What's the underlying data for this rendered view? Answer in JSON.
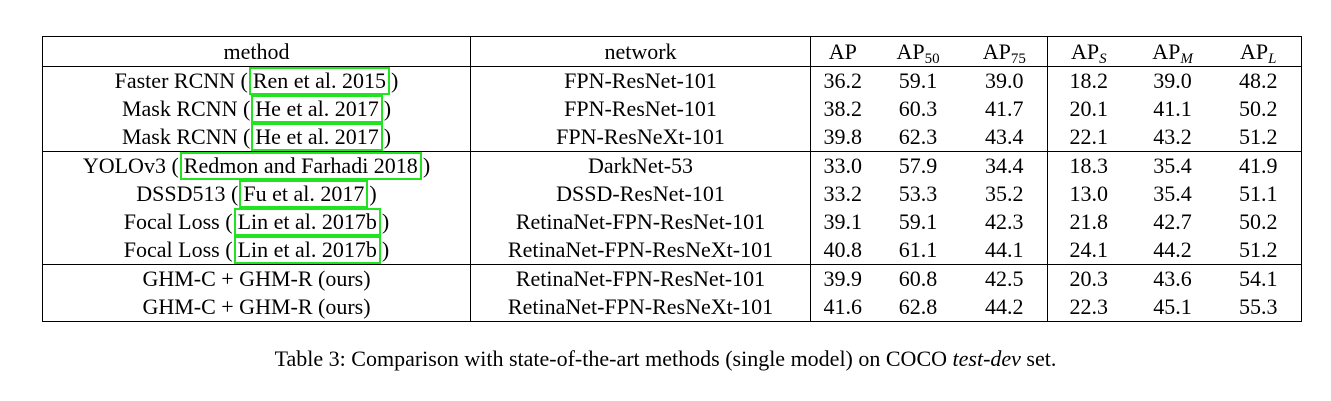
{
  "table": {
    "headers": {
      "method": "method",
      "network": "network",
      "ap": "AP",
      "ap50_base": "AP",
      "ap50_sub": "50",
      "ap75_base": "AP",
      "ap75_sub": "75",
      "aps_base": "AP",
      "aps_sub": "S",
      "apm_base": "AP",
      "apm_sub": "M",
      "apl_base": "AP",
      "apl_sub": "L"
    },
    "rows": [
      {
        "name": "Faster RCNN (",
        "cite": "Ren et al. 2015",
        "close": ")",
        "network": "FPN-ResNet-101",
        "ap": "36.2",
        "ap50": "59.1",
        "ap75": "39.0",
        "aps": "18.2",
        "apm": "39.0",
        "apl": "48.2"
      },
      {
        "name": "Mask RCNN (",
        "cite": "He et al. 2017",
        "close": ")",
        "network": "FPN-ResNet-101",
        "ap": "38.2",
        "ap50": "60.3",
        "ap75": "41.7",
        "aps": "20.1",
        "apm": "41.1",
        "apl": "50.2"
      },
      {
        "name": "Mask RCNN (",
        "cite": "He et al. 2017",
        "close": ")",
        "network": "FPN-ResNeXt-101",
        "ap": "39.8",
        "ap50": "62.3",
        "ap75": "43.4",
        "aps": "22.1",
        "apm": "43.2",
        "apl": "51.2"
      },
      {
        "name": "YOLOv3 (",
        "cite": "Redmon and Farhadi 2018",
        "close": ")",
        "network": "DarkNet-53",
        "ap": "33.0",
        "ap50": "57.9",
        "ap75": "34.4",
        "aps": "18.3",
        "apm": "35.4",
        "apl": "41.9"
      },
      {
        "name": "DSSD513 (",
        "cite": "Fu et al. 2017",
        "close": ")",
        "network": "DSSD-ResNet-101",
        "ap": "33.2",
        "ap50": "53.3",
        "ap75": "35.2",
        "aps": "13.0",
        "apm": "35.4",
        "apl": "51.1"
      },
      {
        "name": "Focal Loss (",
        "cite": "Lin et al. 2017b",
        "close": ")",
        "network": "RetinaNet-FPN-ResNet-101",
        "ap": "39.1",
        "ap50": "59.1",
        "ap75": "42.3",
        "aps": "21.8",
        "apm": "42.7",
        "apl": "50.2"
      },
      {
        "name": "Focal Loss (",
        "cite": "Lin et al. 2017b",
        "close": ")",
        "network": "RetinaNet-FPN-ResNeXt-101",
        "ap": "40.8",
        "ap50": "61.1",
        "ap75": "44.1",
        "aps": "24.1",
        "apm": "44.2",
        "apl": "51.2"
      },
      {
        "name": "GHM-C + GHM-R (ours)",
        "cite": "",
        "close": "",
        "network": "RetinaNet-FPN-ResNet-101",
        "ap": "39.9",
        "ap50": "60.8",
        "ap75": "42.5",
        "aps": "20.3",
        "apm": "43.6",
        "apl": "54.1"
      },
      {
        "name": "GHM-C + GHM-R (ours)",
        "cite": "",
        "close": "",
        "network": "RetinaNet-FPN-ResNeXt-101",
        "ap": "41.6",
        "ap50": "62.8",
        "ap75": "44.2",
        "aps": "22.3",
        "apm": "45.1",
        "apl": "55.3"
      }
    ]
  },
  "caption": {
    "prefix": "Table 3: Comparison with state-of-the-art methods (single model) on COCO ",
    "italic": "test-dev",
    "suffix": " set."
  },
  "colors": {
    "citation_box": "#22e322"
  }
}
